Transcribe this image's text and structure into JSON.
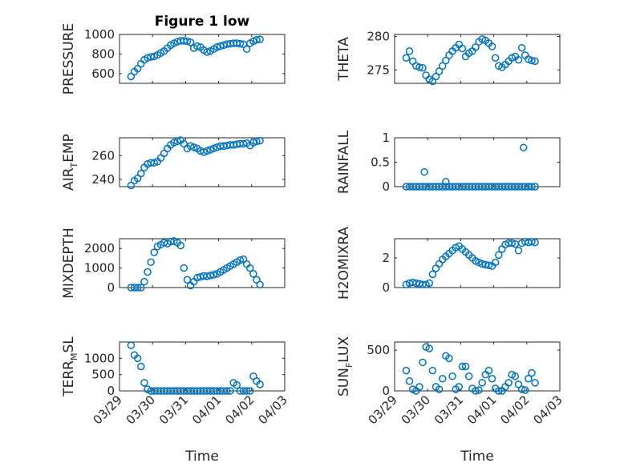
{
  "figure": {
    "title": "Figure 1 low"
  },
  "colors": {
    "marker": "#0072bd",
    "axis": "#262626",
    "grid": "#bdbdbd"
  },
  "chart_data": [
    {
      "type": "scatter",
      "title": "Figure 1 low",
      "ylabel_parts": [
        "PRESSURE"
      ],
      "xlabel": "",
      "xlim": [
        0,
        5
      ],
      "ylim": [
        500,
        1000
      ],
      "yticks": [
        600,
        800,
        1000
      ],
      "xticks": [
        0,
        1,
        2,
        3,
        4,
        5
      ],
      "xticklabels": [],
      "grid": "minor",
      "x": [
        0.35,
        0.45,
        0.55,
        0.65,
        0.75,
        0.85,
        0.95,
        1.05,
        1.15,
        1.25,
        1.35,
        1.45,
        1.55,
        1.65,
        1.75,
        1.85,
        1.95,
        2.05,
        2.15,
        2.25,
        2.35,
        2.45,
        2.55,
        2.65,
        2.75,
        2.85,
        2.95,
        3.05,
        3.15,
        3.25,
        3.35,
        3.45,
        3.55,
        3.65,
        3.75,
        3.85,
        3.95,
        4.05,
        4.15,
        4.25
      ],
      "y": [
        570,
        620,
        650,
        700,
        740,
        760,
        770,
        775,
        790,
        810,
        830,
        860,
        890,
        910,
        925,
        935,
        935,
        930,
        920,
        860,
        880,
        870,
        840,
        820,
        830,
        850,
        870,
        880,
        890,
        900,
        905,
        910,
        910,
        905,
        900,
        850,
        910,
        930,
        945,
        950
      ]
    },
    {
      "type": "scatter",
      "ylabel_parts": [
        "THETA"
      ],
      "xlabel": "",
      "xlim": [
        0,
        5
      ],
      "ylim": [
        273,
        280.3
      ],
      "yticks": [
        275,
        280
      ],
      "xticks": [
        0,
        1,
        2,
        3,
        4,
        5
      ],
      "xticklabels": [],
      "grid": "minor",
      "x": [
        0.35,
        0.45,
        0.55,
        0.65,
        0.75,
        0.85,
        0.95,
        1.05,
        1.15,
        1.25,
        1.35,
        1.45,
        1.55,
        1.65,
        1.75,
        1.85,
        1.95,
        2.05,
        2.15,
        2.25,
        2.35,
        2.45,
        2.55,
        2.65,
        2.75,
        2.85,
        2.95,
        3.05,
        3.15,
        3.25,
        3.35,
        3.45,
        3.55,
        3.65,
        3.75,
        3.85,
        3.95,
        4.05,
        4.15,
        4.25
      ],
      "y": [
        276.8,
        277.8,
        276.3,
        275.6,
        275.4,
        275.3,
        274.2,
        273.6,
        273.3,
        274.0,
        274.8,
        275.6,
        276.4,
        277.2,
        277.8,
        278.3,
        278.8,
        278.2,
        277.0,
        277.5,
        277.8,
        278.4,
        279.2,
        279.6,
        279.4,
        279.0,
        278.5,
        276.8,
        275.6,
        275.4,
        275.8,
        276.3,
        276.8,
        277.0,
        276.5,
        278.3,
        277.2,
        276.6,
        276.4,
        276.3
      ]
    },
    {
      "type": "scatter",
      "ylabel_parts": [
        "AIR",
        "T",
        "EMP"
      ],
      "xlabel": "",
      "xlim": [
        0,
        5
      ],
      "ylim": [
        234,
        275
      ],
      "yticks": [
        240,
        260
      ],
      "xticks": [
        0,
        1,
        2,
        3,
        4,
        5
      ],
      "xticklabels": [],
      "grid": "minor",
      "x": [
        0.35,
        0.45,
        0.55,
        0.65,
        0.75,
        0.85,
        0.95,
        1.05,
        1.15,
        1.25,
        1.35,
        1.45,
        1.55,
        1.65,
        1.75,
        1.85,
        1.95,
        2.05,
        2.15,
        2.25,
        2.35,
        2.45,
        2.55,
        2.65,
        2.75,
        2.85,
        2.95,
        3.05,
        3.15,
        3.25,
        3.35,
        3.45,
        3.55,
        3.65,
        3.75,
        3.85,
        3.95,
        4.05,
        4.15,
        4.25
      ],
      "y": [
        235,
        239,
        241,
        245,
        250,
        253,
        254,
        254,
        255,
        258,
        262,
        266,
        269,
        271,
        272,
        273,
        270,
        266,
        268,
        267,
        266,
        264,
        263,
        264,
        265,
        266,
        267,
        268,
        268,
        268.5,
        269,
        269,
        269.5,
        270,
        270,
        270.5,
        268.5,
        271,
        272,
        272.5
      ]
    },
    {
      "type": "scatter",
      "ylabel_parts": [
        "RAINFALL"
      ],
      "xlabel": "",
      "xlim": [
        0,
        5
      ],
      "ylim": [
        0,
        1
      ],
      "yticks": [
        0,
        0.5,
        1
      ],
      "xticks": [
        0,
        1,
        2,
        3,
        4,
        5
      ],
      "xticklabels": [],
      "grid": "minor",
      "x": [
        0.35,
        0.45,
        0.55,
        0.65,
        0.75,
        0.85,
        0.95,
        1.05,
        1.15,
        1.25,
        1.35,
        1.45,
        1.55,
        1.65,
        1.75,
        1.85,
        1.95,
        2.05,
        2.15,
        2.25,
        2.35,
        2.45,
        2.55,
        2.65,
        2.75,
        2.85,
        2.95,
        3.05,
        3.15,
        3.25,
        3.35,
        3.45,
        3.55,
        3.65,
        3.75,
        3.85,
        3.95,
        4.05,
        4.15,
        4.25,
        0.9,
        1.55,
        3.9
      ],
      "y": [
        0,
        0,
        0,
        0,
        0,
        0,
        0,
        0,
        0,
        0,
        0,
        0,
        0,
        0,
        0,
        0,
        0,
        0,
        0,
        0,
        0,
        0,
        0,
        0,
        0,
        0,
        0,
        0,
        0,
        0,
        0,
        0,
        0,
        0,
        0,
        0,
        0,
        0,
        0,
        0,
        0.3,
        0.1,
        0.8
      ]
    },
    {
      "type": "scatter",
      "ylabel_parts": [
        "MIXDEPTH"
      ],
      "xlabel": "",
      "xlim": [
        0,
        5
      ],
      "ylim": [
        0,
        2500
      ],
      "yticks": [
        0,
        1000,
        2000
      ],
      "xticks": [
        0,
        1,
        2,
        3,
        4,
        5
      ],
      "xticklabels": [],
      "grid": "minor",
      "x": [
        0.35,
        0.45,
        0.55,
        0.65,
        0.75,
        0.85,
        0.95,
        1.05,
        1.15,
        1.25,
        1.35,
        1.45,
        1.55,
        1.65,
        1.75,
        1.85,
        1.95,
        2.05,
        2.15,
        2.25,
        2.35,
        2.45,
        2.55,
        2.65,
        2.75,
        2.85,
        2.95,
        3.05,
        3.15,
        3.25,
        3.35,
        3.45,
        3.55,
        3.65,
        3.75,
        3.85,
        3.95,
        4.05,
        4.15,
        4.25
      ],
      "y": [
        0,
        0,
        0,
        0,
        300,
        800,
        1300,
        1800,
        2100,
        2200,
        2300,
        2250,
        2350,
        2380,
        2300,
        2150,
        1000,
        400,
        100,
        300,
        500,
        550,
        600,
        580,
        620,
        650,
        700,
        800,
        900,
        1000,
        1100,
        1200,
        1300,
        1400,
        1450,
        1200,
        1000,
        700,
        400,
        150
      ]
    },
    {
      "type": "scatter",
      "ylabel_parts": [
        "H2OMIXRA"
      ],
      "xlabel": "",
      "xlim": [
        0,
        5
      ],
      "ylim": [
        0,
        3.3
      ],
      "yticks": [
        0,
        2
      ],
      "xticks": [
        0,
        1,
        2,
        3,
        4,
        5
      ],
      "xticklabels": [],
      "grid": "minor",
      "x": [
        0.35,
        0.45,
        0.55,
        0.65,
        0.75,
        0.85,
        0.95,
        1.05,
        1.15,
        1.25,
        1.35,
        1.45,
        1.55,
        1.65,
        1.75,
        1.85,
        1.95,
        2.05,
        2.15,
        2.25,
        2.35,
        2.45,
        2.55,
        2.65,
        2.75,
        2.85,
        2.95,
        3.05,
        3.15,
        3.25,
        3.35,
        3.45,
        3.55,
        3.65,
        3.75,
        3.85,
        3.95,
        4.05,
        4.15,
        4.25
      ],
      "y": [
        0.2,
        0.3,
        0.35,
        0.3,
        0.25,
        0.2,
        0.2,
        0.3,
        0.9,
        1.3,
        1.6,
        1.9,
        2.1,
        2.3,
        2.5,
        2.7,
        2.8,
        2.6,
        2.4,
        2.2,
        2.0,
        1.8,
        1.7,
        1.6,
        1.55,
        1.5,
        1.45,
        1.7,
        2.2,
        2.6,
        2.9,
        3.0,
        3.0,
        2.95,
        2.5,
        3.0,
        3.1,
        3.05,
        3.1,
        3.05
      ]
    },
    {
      "type": "scatter",
      "ylabel_parts": [
        "TERR",
        "M",
        "SL"
      ],
      "xlabel": "Time",
      "xlim": [
        0,
        5
      ],
      "ylim": [
        0,
        1500
      ],
      "yticks": [
        0,
        500,
        1000
      ],
      "xticks": [
        0,
        1,
        2,
        3,
        4,
        5
      ],
      "xticklabels": [
        "03/29",
        "03/30",
        "03/31",
        "04/01",
        "04/02",
        "04/03"
      ],
      "grid": "minor",
      "x": [
        0.35,
        0.45,
        0.55,
        0.65,
        0.75,
        0.85,
        0.95,
        1.05,
        1.15,
        1.25,
        1.35,
        1.45,
        1.55,
        1.65,
        1.75,
        1.85,
        1.95,
        2.05,
        2.15,
        2.25,
        2.35,
        2.45,
        2.55,
        2.65,
        2.75,
        2.85,
        2.95,
        3.05,
        3.15,
        3.25,
        3.35,
        3.45,
        3.55,
        3.65,
        3.75,
        3.85,
        3.95,
        4.05,
        4.15,
        4.25
      ],
      "y": [
        1400,
        1100,
        1000,
        750,
        250,
        50,
        0,
        0,
        0,
        0,
        0,
        0,
        0,
        0,
        0,
        0,
        0,
        0,
        0,
        0,
        0,
        0,
        0,
        0,
        0,
        0,
        0,
        0,
        0,
        0,
        0,
        250,
        180,
        0,
        0,
        0,
        0,
        450,
        300,
        200
      ]
    },
    {
      "type": "scatter",
      "ylabel_parts": [
        "SUN",
        "F",
        "LUX"
      ],
      "xlabel": "Time",
      "xlim": [
        0,
        5
      ],
      "ylim": [
        0,
        600
      ],
      "yticks": [
        0,
        500
      ],
      "xticks": [
        0,
        1,
        2,
        3,
        4,
        5
      ],
      "xticklabels": [
        "03/29",
        "03/30",
        "03/31",
        "04/01",
        "04/02",
        "04/03"
      ],
      "grid": "minor",
      "x": [
        0.35,
        0.45,
        0.55,
        0.65,
        0.75,
        0.85,
        0.95,
        1.05,
        1.15,
        1.25,
        1.35,
        1.45,
        1.55,
        1.65,
        1.75,
        1.85,
        1.95,
        2.05,
        2.15,
        2.25,
        2.35,
        2.45,
        2.55,
        2.65,
        2.75,
        2.85,
        2.95,
        3.05,
        3.15,
        3.25,
        3.35,
        3.45,
        3.55,
        3.65,
        3.75,
        3.85,
        3.95,
        4.05,
        4.15,
        4.25
      ],
      "y": [
        250,
        120,
        20,
        0,
        50,
        350,
        540,
        520,
        250,
        50,
        20,
        150,
        430,
        400,
        180,
        20,
        50,
        300,
        300,
        180,
        30,
        0,
        10,
        100,
        200,
        250,
        150,
        30,
        0,
        0,
        50,
        100,
        200,
        180,
        80,
        20,
        10,
        150,
        220,
        100
      ]
    }
  ]
}
